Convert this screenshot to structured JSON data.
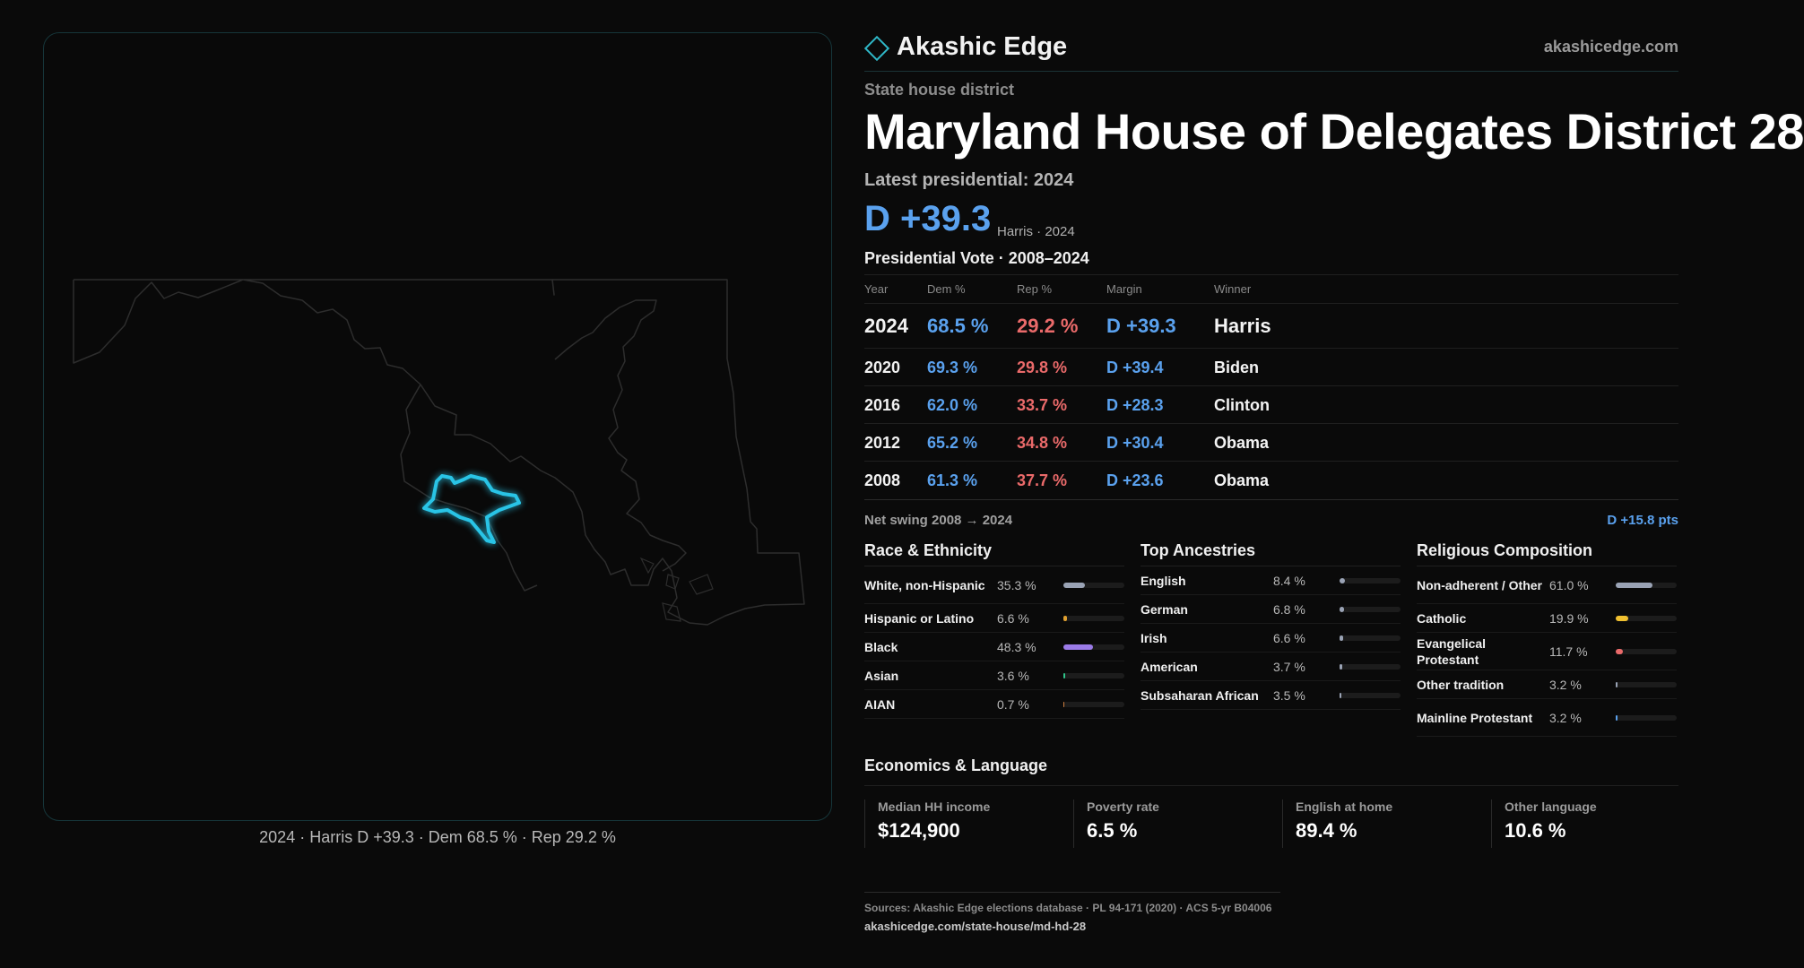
{
  "map": {
    "caption": "2024 · Harris D +39.3 · Dem 68.5 % · Rep 29.2 %",
    "district_color": "#29c4e6"
  },
  "header": {
    "brand": "Akashic Edge",
    "url": "akashicedge.com"
  },
  "district": {
    "kicker": "State house district",
    "title": "Maryland House of Delegates District 28",
    "latest_label": "Latest presidential: 2024",
    "margin": "D +39.3",
    "margin_sub": "Harris · 2024"
  },
  "vote": {
    "heading": "Presidential Vote · 2008–2024",
    "columns": {
      "year": "Year",
      "dem": "Dem %",
      "rep": "Rep %",
      "margin": "Margin",
      "winner": "Winner"
    },
    "rows": [
      {
        "year": "2024",
        "dem": "68.5 %",
        "rep": "29.2 %",
        "margin": "D +39.3",
        "winner": "Harris"
      },
      {
        "year": "2020",
        "dem": "69.3 %",
        "rep": "29.8 %",
        "margin": "D +39.4",
        "winner": "Biden"
      },
      {
        "year": "2016",
        "dem": "62.0 %",
        "rep": "33.7 %",
        "margin": "D +28.3",
        "winner": "Clinton"
      },
      {
        "year": "2012",
        "dem": "65.2 %",
        "rep": "34.8 %",
        "margin": "D +30.4",
        "winner": "Obama"
      },
      {
        "year": "2008",
        "dem": "61.3 %",
        "rep": "37.7 %",
        "margin": "D +23.6",
        "winner": "Obama"
      }
    ],
    "swing_label": "Net swing 2008 → 2024",
    "swing_value": "D +15.8 pts"
  },
  "race": {
    "title": "Race & Ethnicity",
    "items": [
      {
        "label": "White, non-Hispanic",
        "pct": "35.3 %",
        "value": 35.3,
        "color": "#9aa3b5"
      },
      {
        "label": "Hispanic or Latino",
        "pct": "6.6 %",
        "value": 6.6,
        "color": "#e0a030"
      },
      {
        "label": "Black",
        "pct": "48.3 %",
        "value": 48.3,
        "color": "#9b7be8"
      },
      {
        "label": "Asian",
        "pct": "3.6 %",
        "value": 3.6,
        "color": "#2fc48a"
      },
      {
        "label": "AIAN",
        "pct": "0.7 %",
        "value": 0.7,
        "color": "#d08040"
      }
    ]
  },
  "ancestry": {
    "title": "Top Ancestries",
    "items": [
      {
        "label": "English",
        "pct": "8.4 %",
        "value": 8.4,
        "color": "#9aa3b5"
      },
      {
        "label": "German",
        "pct": "6.8 %",
        "value": 6.8,
        "color": "#9aa3b5"
      },
      {
        "label": "Irish",
        "pct": "6.6 %",
        "value": 6.6,
        "color": "#9aa3b5"
      },
      {
        "label": "American",
        "pct": "3.7 %",
        "value": 3.7,
        "color": "#9aa3b5"
      },
      {
        "label": "Subsaharan African",
        "pct": "3.5 %",
        "value": 3.5,
        "color": "#9aa3b5"
      }
    ]
  },
  "religion": {
    "title": "Religious Composition",
    "items": [
      {
        "label": "Non-adherent / Other",
        "pct": "61.0 %",
        "value": 61.0,
        "color": "#9aa3b5"
      },
      {
        "label": "Catholic",
        "pct": "19.9 %",
        "value": 19.9,
        "color": "#f0c030"
      },
      {
        "label": "Evangelical Protestant",
        "pct": "11.7 %",
        "value": 11.7,
        "color": "#ea6a6a"
      },
      {
        "label": "Other tradition",
        "pct": "3.2 %",
        "value": 3.2,
        "color": "#9aa3b5"
      },
      {
        "label": "Mainline Protestant",
        "pct": "3.2 %",
        "value": 3.2,
        "color": "#5aa1ee"
      }
    ]
  },
  "econ": {
    "title": "Economics & Language",
    "cells": [
      {
        "label": "Median HH income",
        "value": "$124,900"
      },
      {
        "label": "Poverty rate",
        "value": "6.5 %"
      },
      {
        "label": "English at home",
        "value": "89.4 %"
      },
      {
        "label": "Other language",
        "value": "10.6 %"
      }
    ]
  },
  "footer": {
    "sources": "Sources: Akashic Edge elections database · PL 94-171 (2020) · ACS 5-yr B04006",
    "url": "akashicedge.com/state-house/md-hd-28"
  }
}
